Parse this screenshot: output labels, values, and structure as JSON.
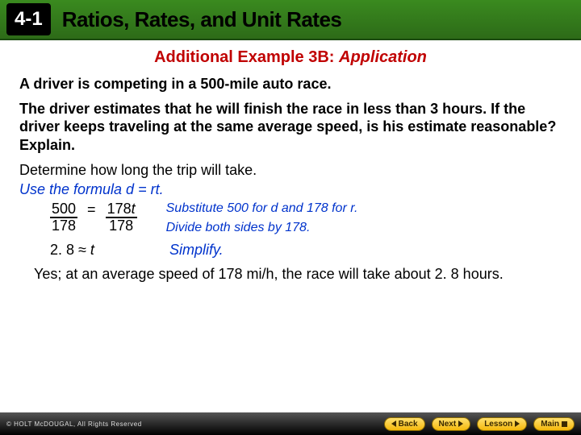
{
  "colors": {
    "header_gradient_top": "#3a8a1f",
    "header_gradient_bottom": "#2d6b18",
    "badge_bg": "#000000",
    "badge_text": "#ffffff",
    "red": "#c00000",
    "blue": "#0033cc",
    "footer_btn_top": "#ffe070",
    "footer_btn_bottom": "#f5b80a"
  },
  "typography": {
    "title_fontsize_pt": 20,
    "body_fontsize_pt": 14,
    "header_fontsize_pt": 20
  },
  "header": {
    "section_number": "4-1",
    "title": "Ratios, Rates, and Unit Rates"
  },
  "example": {
    "label_prefix": "Additional Example 3B: ",
    "label_app": "Application"
  },
  "problem": {
    "line1": "A driver is competing in a 500-mile auto race.",
    "line2": "The driver estimates that he will finish the race in less than 3 hours. If the driver keeps traveling at the same average speed, is his estimate reasonable? Explain."
  },
  "work": {
    "determine": "Determine how long the trip will take.",
    "use_formula": "Use the formula d = rt.",
    "eq_num_left": "500",
    "eq_den_left": "178",
    "eq_mid": "=",
    "eq_num_right": "178",
    "eq_num_right_var": "t",
    "eq_den_right": "178",
    "comment1": "Substitute 500 for d and 178 for r.",
    "comment2": "Divide both sides by 178.",
    "simplify_lhs": "2. 8 ≈ ",
    "simplify_var": "t",
    "simplify_comment": "Simplify."
  },
  "answer": "Yes; at an average speed of 178 mi/h, the race will take about 2. 8 hours.",
  "footer": {
    "brand": "© HOLT McDOUGAL, All Rights Reserved",
    "back_label": "Back",
    "next_label": "Next",
    "lesson_label": "Lesson",
    "main_label": "Main"
  }
}
